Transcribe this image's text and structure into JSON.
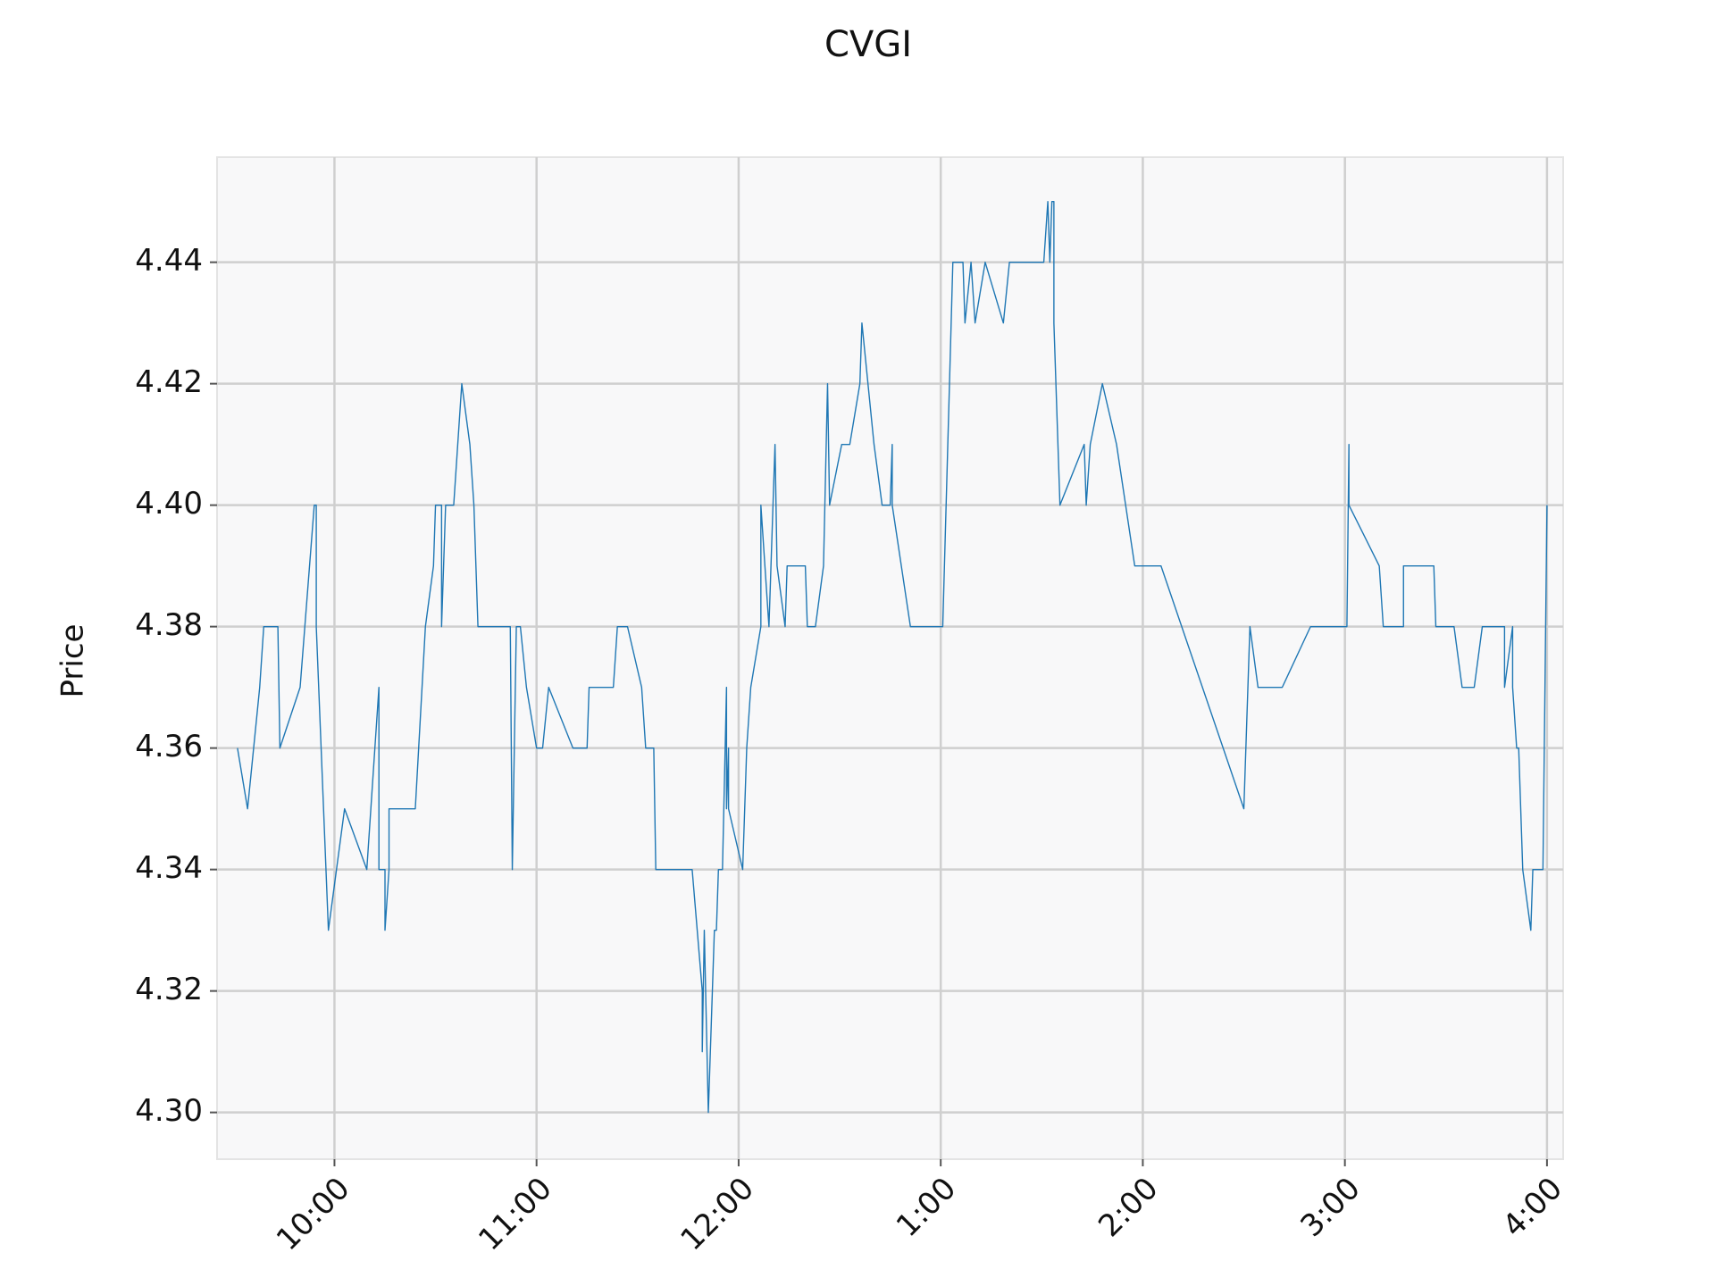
{
  "chart_data": {
    "type": "line",
    "title": "CVGI",
    "y_label": "Price",
    "x": [
      9.52,
      9.57,
      9.63,
      9.65,
      9.72,
      9.73,
      9.83,
      9.9,
      9.91,
      9.91,
      9.97,
      10.01,
      10.05,
      10.16,
      10.22,
      10.22,
      10.25,
      10.25,
      10.27,
      10.27,
      10.4,
      10.45,
      10.49,
      10.5,
      10.53,
      10.53,
      10.55,
      10.59,
      10.63,
      10.67,
      10.69,
      10.71,
      10.87,
      10.88,
      10.9,
      10.92,
      10.95,
      11.0,
      11.03,
      11.06,
      11.18,
      11.25,
      11.26,
      11.38,
      11.4,
      11.45,
      11.52,
      11.54,
      11.58,
      11.59,
      11.77,
      11.82,
      11.82,
      11.83,
      11.85,
      11.88,
      11.89,
      11.9,
      11.92,
      11.94,
      11.94,
      11.95,
      11.95,
      12.02,
      12.04,
      12.06,
      12.11,
      12.11,
      12.15,
      12.18,
      12.19,
      12.23,
      12.24,
      12.33,
      12.34,
      12.38,
      12.42,
      12.44,
      12.45,
      12.51,
      12.55,
      12.6,
      12.61,
      12.67,
      12.71,
      12.75,
      12.76,
      12.76,
      12.85,
      13.01,
      13.06,
      13.11,
      13.12,
      13.15,
      13.17,
      13.22,
      13.31,
      13.34,
      13.51,
      13.53,
      13.54,
      13.55,
      13.56,
      13.56,
      13.59,
      13.71,
      13.72,
      13.74,
      13.8,
      13.87,
      13.96,
      14.09,
      14.5,
      14.53,
      14.57,
      14.69,
      14.83,
      15.01,
      15.02,
      15.02,
      15.17,
      15.19,
      15.29,
      15.29,
      15.44,
      15.45,
      15.54,
      15.58,
      15.64,
      15.68,
      15.79,
      15.79,
      15.83,
      15.83,
      15.85,
      15.86,
      15.88,
      15.92,
      15.93,
      15.98,
      16.0
    ],
    "series": [
      {
        "name": "CVGI",
        "color": "#1f77b4",
        "values": [
          4.36,
          4.35,
          4.37,
          4.38,
          4.38,
          4.36,
          4.37,
          4.4,
          4.4,
          4.38,
          4.33,
          4.34,
          4.35,
          4.34,
          4.37,
          4.34,
          4.34,
          4.33,
          4.34,
          4.35,
          4.35,
          4.38,
          4.39,
          4.4,
          4.4,
          4.38,
          4.4,
          4.4,
          4.42,
          4.41,
          4.4,
          4.38,
          4.38,
          4.34,
          4.38,
          4.38,
          4.37,
          4.36,
          4.36,
          4.37,
          4.36,
          4.36,
          4.37,
          4.37,
          4.38,
          4.38,
          4.37,
          4.36,
          4.36,
          4.34,
          4.34,
          4.32,
          4.31,
          4.33,
          4.3,
          4.33,
          4.33,
          4.34,
          4.34,
          4.37,
          4.35,
          4.36,
          4.35,
          4.34,
          4.36,
          4.37,
          4.38,
          4.4,
          4.38,
          4.41,
          4.39,
          4.38,
          4.39,
          4.39,
          4.38,
          4.38,
          4.39,
          4.42,
          4.4,
          4.41,
          4.41,
          4.42,
          4.43,
          4.41,
          4.4,
          4.4,
          4.41,
          4.4,
          4.38,
          4.38,
          4.44,
          4.44,
          4.43,
          4.44,
          4.43,
          4.44,
          4.43,
          4.44,
          4.44,
          4.45,
          4.44,
          4.45,
          4.45,
          4.43,
          4.4,
          4.41,
          4.4,
          4.41,
          4.42,
          4.41,
          4.39,
          4.39,
          4.35,
          4.38,
          4.37,
          4.37,
          4.38,
          4.38,
          4.41,
          4.4,
          4.39,
          4.38,
          4.38,
          4.39,
          4.39,
          4.38,
          4.38,
          4.37,
          4.37,
          4.38,
          4.38,
          4.37,
          4.38,
          4.37,
          4.36,
          4.36,
          4.34,
          4.33,
          4.34,
          4.34,
          4.4
        ]
      }
    ],
    "xlim": [
      9.419,
      16.08
    ],
    "xticks": [
      {
        "value": 10,
        "label": "10:00"
      },
      {
        "value": 11,
        "label": "11:00"
      },
      {
        "value": 12,
        "label": "12:00"
      },
      {
        "value": 13,
        "label": "1:00"
      },
      {
        "value": 14,
        "label": "2:00"
      },
      {
        "value": 15,
        "label": "3:00"
      },
      {
        "value": 16,
        "label": "4:00"
      }
    ],
    "ylim": [
      4.2923,
      4.4573
    ],
    "yticks": [
      {
        "value": 4.3,
        "label": "4.30"
      },
      4.32,
      4.34,
      4.36,
      4.38,
      {
        "value": 4.4,
        "label": "4.40"
      },
      4.42,
      4.44
    ],
    "grid": true
  }
}
